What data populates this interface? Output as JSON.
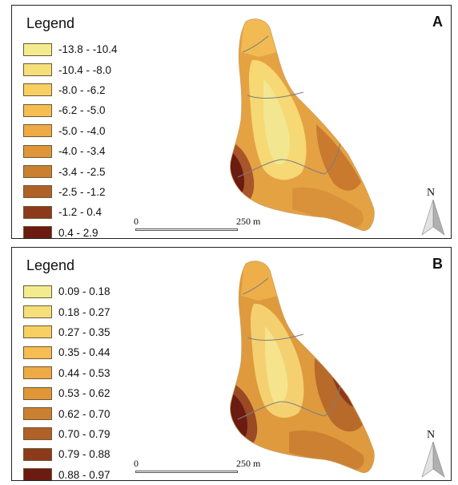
{
  "panel_a": {
    "letter": "A",
    "legend_title": "Legend",
    "legend": [
      {
        "label": "-13.8 - -10.4",
        "color": "#f2ec8f"
      },
      {
        "label": "-10.4 - -8.0",
        "color": "#f5df7a"
      },
      {
        "label": "-8.0 - -6.2",
        "color": "#f7cf63"
      },
      {
        "label": "-6.2 - -5.0",
        "color": "#f5bd52"
      },
      {
        "label": "-5.0 - -4.0",
        "color": "#eeaa45"
      },
      {
        "label": "-4.0 - -3.4",
        "color": "#df9639"
      },
      {
        "label": "-3.4 - -2.5",
        "color": "#cb7f30"
      },
      {
        "label": "-2.5 - -1.2",
        "color": "#b06127"
      },
      {
        "label": "-1.2 - 0.4",
        "color": "#8d3a1c"
      },
      {
        "label": "0.4 - 2.9",
        "color": "#6b1b10"
      }
    ],
    "scale": {
      "start": "0",
      "end": "250 m"
    },
    "north": "N"
  },
  "panel_b": {
    "letter": "B",
    "legend_title": "Legend",
    "legend": [
      {
        "label": "0.09 - 0.18",
        "color": "#f2ec8f"
      },
      {
        "label": "0.18 - 0.27",
        "color": "#f5df7a"
      },
      {
        "label": "0.27 - 0.35",
        "color": "#f7cf63"
      },
      {
        "label": "0.35 - 0.44",
        "color": "#f5bd52"
      },
      {
        "label": "0.44 - 0.53",
        "color": "#eeaa45"
      },
      {
        "label": "0.53 - 0.62",
        "color": "#df9639"
      },
      {
        "label": "0.62 - 0.70",
        "color": "#cb7f30"
      },
      {
        "label": "0.70 - 0.79",
        "color": "#b06127"
      },
      {
        "label": "0.79 - 0.88",
        "color": "#8d3a1c"
      },
      {
        "label": "0.88 - 0.97",
        "color": "#6b1b10"
      }
    ],
    "scale": {
      "start": "0",
      "end": "250 m"
    },
    "north": "N"
  }
}
